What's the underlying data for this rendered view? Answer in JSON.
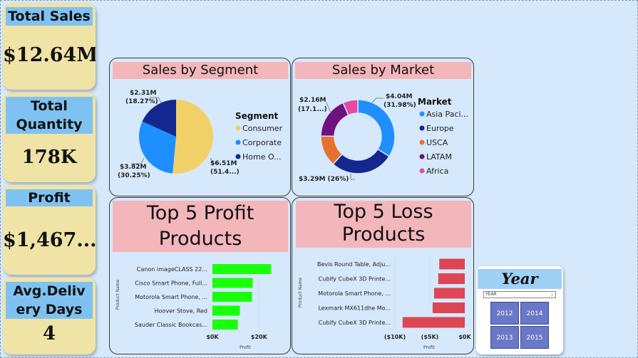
{
  "kpis": [
    {
      "title": "Total Sales",
      "value": "$12.64M"
    },
    {
      "title": "Total Quantity",
      "value": "178K"
    },
    {
      "title": "Profit",
      "value": "$1,467..."
    },
    {
      "title": "Avg.Delivery Days",
      "value": "4"
    }
  ],
  "colors": {
    "consumer": "#f2d068",
    "corporate": "#1e8fff",
    "home_office": "#13278f",
    "asia_pacific": "#1e8fff",
    "europe": "#13278f",
    "usca": "#e8702f",
    "latam": "#6f1180",
    "africa": "#e64aa0",
    "profit_bar": "#18ff0a",
    "loss_bar": "#dd4653"
  },
  "slicer": {
    "title": "Year",
    "dropdown_label": "YEAR",
    "years": [
      "2012",
      "2014",
      "2013",
      "2015"
    ]
  },
  "chart_data": [
    {
      "type": "pie",
      "title": "Sales by Segment",
      "legend_title": "Segment",
      "legend_labels": [
        "Consumer",
        "Corporate",
        "Home O..."
      ],
      "slices": [
        {
          "name": "Consumer",
          "value": 6.51,
          "label1": "$6.51M",
          "label2": "(51.4...)"
        },
        {
          "name": "Corporate",
          "value": 3.82,
          "label1": "$3.82M",
          "label2": "(30.25%)"
        },
        {
          "name": "Home Office",
          "value": 2.31,
          "label1": "$2.31M",
          "label2": "(18.27%)"
        }
      ]
    },
    {
      "type": "pie",
      "title": "Sales by Market",
      "legend_title": "Market",
      "legend_labels": [
        "Asia Paci...",
        "Europe",
        "USCA",
        "LATAM",
        "Africa"
      ],
      "slices": [
        {
          "name": "Asia Pacific",
          "value": 4.04,
          "label1": "$4.04M",
          "label2": "(31.98%)"
        },
        {
          "name": "Europe",
          "value": 3.29,
          "label1": "$3.29M (26%)",
          "label2": ""
        },
        {
          "name": "USCA",
          "value": 1.62,
          "label1": "",
          "label2": ""
        },
        {
          "name": "LATAM",
          "value": 2.16,
          "label1": "$2.16M",
          "label2": "(17.1...)"
        },
        {
          "name": "Africa",
          "value": 0.78,
          "label1": "",
          "label2": ""
        }
      ]
    },
    {
      "type": "bar",
      "title": "Top 5 Profit Products",
      "ylabel": "Product Name",
      "xlabel": "Profit",
      "categories": [
        "Canon imageCLASS 22...",
        "Cisco Smart Phone, Full...",
        "Motorola Smart Phone, ...",
        "Hoover Stove, Red",
        "Sauder Classic Bookcas..."
      ],
      "values": [
        25200,
        17300,
        17000,
        11800,
        10900
      ],
      "xlim": [
        0,
        30000
      ],
      "xticks": [
        {
          "value": 0,
          "label": "$0K"
        },
        {
          "value": 20000,
          "label": "$20K"
        }
      ]
    },
    {
      "type": "bar",
      "title": "Top 5 Loss Products",
      "ylabel": "Product Name",
      "xlabel": "Profit",
      "categories": [
        "Bevis Round Table, Adju...",
        "Cubify CubeX 3D Printe...",
        "Motorola Smart Phone, ...",
        "Lexmark MX611dhe Mo...",
        "Cubify CubeX 3D Printe..."
      ],
      "values": [
        -3650,
        -3800,
        -4400,
        -4600,
        -8900
      ],
      "xlim": [
        -10000,
        0
      ],
      "xticks": [
        {
          "value": -10000,
          "label": "($10K)"
        },
        {
          "value": -5000,
          "label": "($5K)"
        },
        {
          "value": 0,
          "label": "$0K"
        }
      ]
    }
  ]
}
